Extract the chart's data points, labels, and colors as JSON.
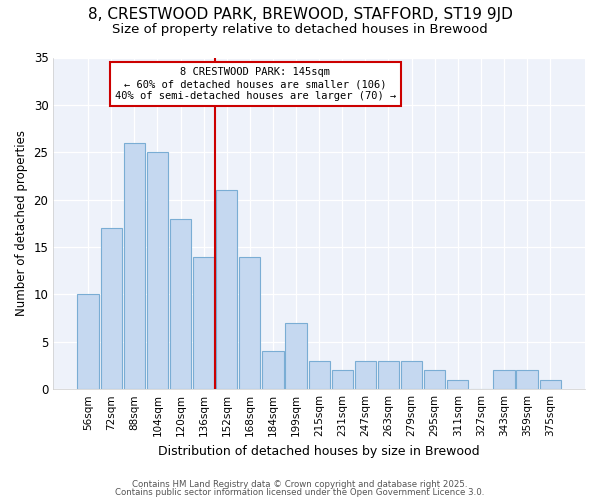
{
  "title": "8, CRESTWOOD PARK, BREWOOD, STAFFORD, ST19 9JD",
  "subtitle": "Size of property relative to detached houses in Brewood",
  "xlabel": "Distribution of detached houses by size in Brewood",
  "ylabel": "Number of detached properties",
  "bar_labels": [
    "56sqm",
    "72sqm",
    "88sqm",
    "104sqm",
    "120sqm",
    "136sqm",
    "152sqm",
    "168sqm",
    "184sqm",
    "199sqm",
    "215sqm",
    "231sqm",
    "247sqm",
    "263sqm",
    "279sqm",
    "295sqm",
    "311sqm",
    "327sqm",
    "343sqm",
    "359sqm",
    "375sqm"
  ],
  "bar_values": [
    10,
    17,
    26,
    25,
    18,
    14,
    21,
    14,
    4,
    7,
    3,
    2,
    3,
    3,
    3,
    2,
    1,
    0,
    2,
    2,
    1
  ],
  "bar_color": "#c5d8f0",
  "bar_edge_color": "#7aadd4",
  "vline_color": "#cc0000",
  "annotation_text": "8 CRESTWOOD PARK: 145sqm\n← 60% of detached houses are smaller (106)\n40% of semi-detached houses are larger (70) →",
  "annotation_box_color": "white",
  "annotation_box_edge": "#cc0000",
  "ylim": [
    0,
    35
  ],
  "background_color": "#ffffff",
  "plot_bg_color": "#eef2fa",
  "grid_color": "#ffffff",
  "footer_line1": "Contains HM Land Registry data © Crown copyright and database right 2025.",
  "footer_line2": "Contains public sector information licensed under the Open Government Licence 3.0.",
  "title_fontsize": 11,
  "subtitle_fontsize": 9.5,
  "ylabel_fontsize": 8.5,
  "xlabel_fontsize": 9
}
